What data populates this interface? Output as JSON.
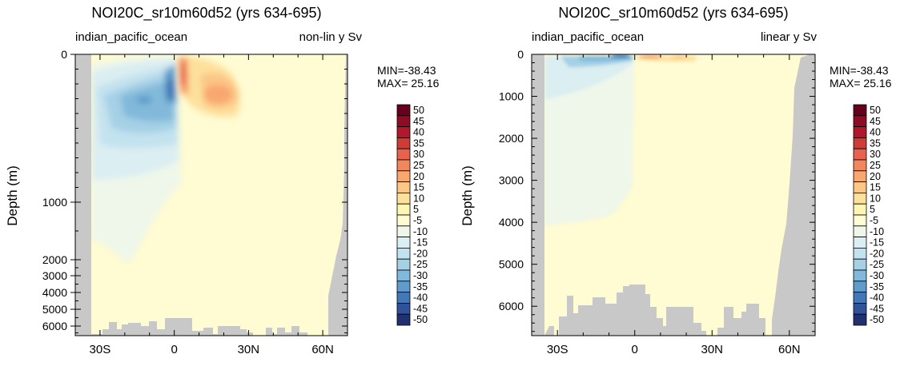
{
  "panels": [
    {
      "title": "NOI20C_sr10m60d52 (yrs 634-695)",
      "left_label": "indian_pacific_ocean",
      "right_label": "non-lin y Sv",
      "ylabel": "Depth (m)",
      "min_text": "MIN=-38.43",
      "max_text": "MAX= 25.16"
    },
    {
      "title": "NOI20C_sr10m60d52 (yrs 634-695)",
      "left_label": "indian_pacific_ocean",
      "right_label": "linear y Sv",
      "ylabel": "Depth (m)",
      "min_text": "MIN=-38.43",
      "max_text": "MAX= 25.16"
    }
  ],
  "colorbar": {
    "labels": [
      "50",
      "45",
      "40",
      "35",
      "30",
      "25",
      "20",
      "15",
      "10",
      "5",
      "-5",
      "-10",
      "-15",
      "-20",
      "-25",
      "-30",
      "-35",
      "-40",
      "-45",
      "-50"
    ],
    "colors": [
      "#67001f",
      "#8f0c25",
      "#b2182b",
      "#cf3c37",
      "#e7624f",
      "#f2875d",
      "#f8a76f",
      "#fcc686",
      "#fde09c",
      "#fff6b3",
      "#fffbd2",
      "#eef7ea",
      "#dbeef1",
      "#c3e2ef",
      "#a5d0e6",
      "#82b9da",
      "#5f9ccb",
      "#4278b5",
      "#30529a",
      "#21306e"
    ]
  },
  "colors": {
    "land": "#c8c8c8",
    "background_field": "#fffbd2"
  },
  "chart_data": [
    {
      "type": "heatmap",
      "title": "NOI20C_sr10m60d52 (yrs 634-695)",
      "subtitle_left": "indian_pacific_ocean",
      "subtitle_right": "non-lin y Sv",
      "xlabel": "",
      "ylabel": "Depth (m)",
      "x_axis": {
        "ticks": [
          "30S",
          "0",
          "30N",
          "60N"
        ],
        "tick_values": [
          -30,
          0,
          30,
          60
        ],
        "range": [
          -40,
          70
        ]
      },
      "y_axis": {
        "ticks": [
          "0",
          "1000",
          "2000",
          "3000",
          "4000",
          "5000",
          "6000"
        ],
        "scale": "nonlinear",
        "inverted": true,
        "range": [
          0,
          6700
        ]
      },
      "min": -38.43,
      "max": 25.16,
      "units": "Sv",
      "features": [
        {
          "lat": -8,
          "depth": 250,
          "value": -38.43
        },
        {
          "lat": 1,
          "depth": 60,
          "value": 25.16
        },
        {
          "lat": 18,
          "depth": 230,
          "value": 15
        },
        {
          "lat": -22,
          "depth": 260,
          "value": -20
        }
      ]
    },
    {
      "type": "heatmap",
      "title": "NOI20C_sr10m60d52 (yrs 634-695)",
      "subtitle_left": "indian_pacific_ocean",
      "subtitle_right": "linear y Sv",
      "xlabel": "",
      "ylabel": "Depth (m)",
      "x_axis": {
        "ticks": [
          "30S",
          "0",
          "30N",
          "60N"
        ],
        "tick_values": [
          -30,
          0,
          30,
          60
        ],
        "range": [
          -40,
          70
        ]
      },
      "y_axis": {
        "ticks": [
          "0",
          "1000",
          "2000",
          "3000",
          "4000",
          "5000",
          "6000"
        ],
        "scale": "linear",
        "inverted": true,
        "range": [
          0,
          6700
        ]
      },
      "min": -38.43,
      "max": 25.16,
      "units": "Sv",
      "features": [
        {
          "lat": -8,
          "depth": 100,
          "value": -38.43
        },
        {
          "lat": 10,
          "depth": 50,
          "value": 25.16
        }
      ]
    }
  ]
}
